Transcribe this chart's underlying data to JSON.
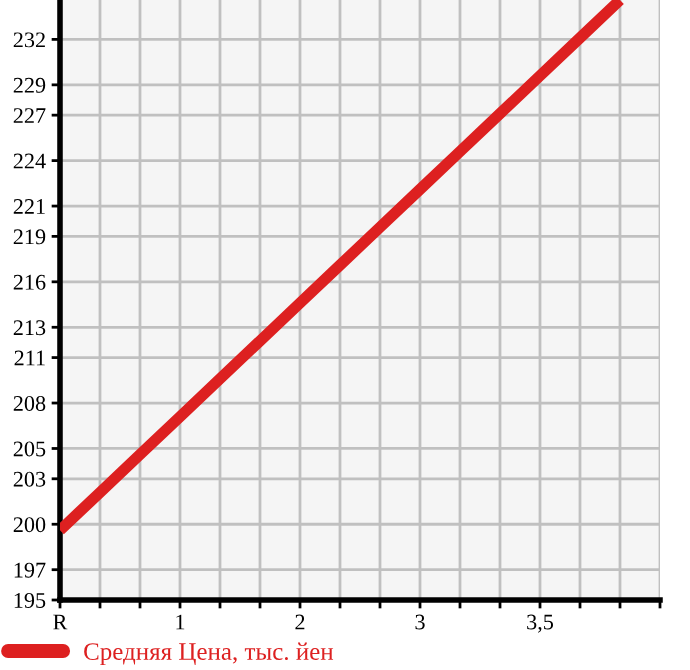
{
  "chart_data": {
    "type": "line",
    "categories": [
      "R",
      null,
      null,
      "1",
      null,
      null,
      "2",
      null,
      null,
      "3",
      null,
      null,
      "3,5",
      null,
      null,
      null
    ],
    "series": [
      {
        "name": "Средняя Цена, тыс. йен",
        "color": "#dd2020",
        "values": [
          199.6,
          202.1,
          204.6,
          207.1,
          209.6,
          212.1,
          214.6,
          217.1,
          219.6,
          222.1,
          224.6,
          227.1,
          229.6,
          232.1,
          234.6,
          null
        ]
      }
    ],
    "ylim": [
      195,
      234.6
    ],
    "yticks": [
      195,
      197,
      200,
      203,
      205,
      208,
      211,
      213,
      216,
      219,
      221,
      224,
      227,
      229,
      232
    ],
    "grid": true,
    "legend": "bottom left",
    "marker": "none",
    "line_style": "solid"
  }
}
